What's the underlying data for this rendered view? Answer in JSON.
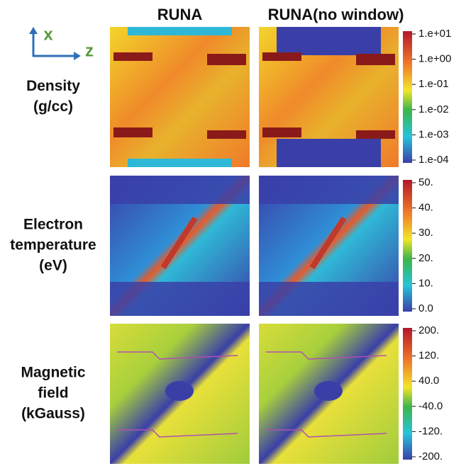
{
  "axes": {
    "vertical": "x",
    "horizontal": "z"
  },
  "columns": [
    "RUNA",
    "RUNA(no window)"
  ],
  "rows": [
    {
      "label": [
        "Density",
        "(g/cc)"
      ],
      "colorbar": [
        "1.e+01",
        "1.e+00",
        "1.e-01",
        "1.e-02",
        "1.e-03",
        "1.e-04"
      ]
    },
    {
      "label": [
        "Electron",
        "temperature",
        "(eV)"
      ],
      "colorbar": [
        "50.",
        "40.",
        "30.",
        "20.",
        "10.",
        "0.0"
      ]
    },
    {
      "label": [
        "Magnetic",
        "field",
        "(kGauss)"
      ],
      "colorbar": [
        "200.",
        "120.",
        "40.0",
        "-40.0",
        "-120.",
        "-200."
      ]
    }
  ]
}
